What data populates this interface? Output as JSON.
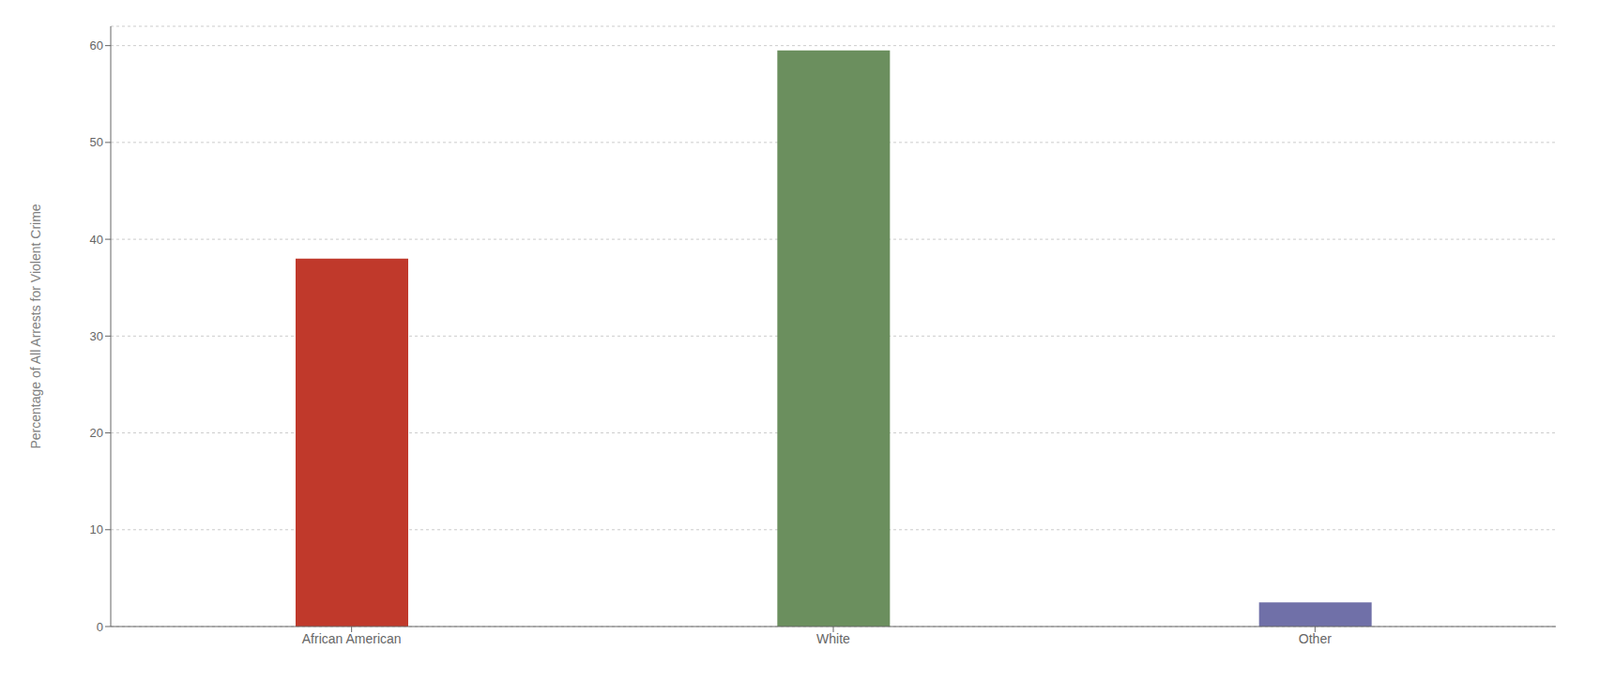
{
  "chart_data": {
    "type": "bar",
    "categories": [
      "African American",
      "White",
      "Other"
    ],
    "values": [
      38.0,
      59.5,
      2.5
    ],
    "colors": [
      "#c0392b",
      "#6b8f5e",
      "#7070a8"
    ],
    "ylabel": "Percentage of All Arrests for Violent Crime",
    "ylim": [
      0,
      62
    ],
    "yticks": [
      0,
      10,
      20,
      30,
      40,
      50,
      60
    ],
    "grid": true
  }
}
